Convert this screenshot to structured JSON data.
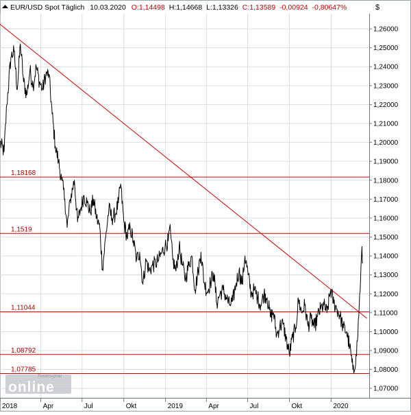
{
  "header": {
    "instrument": "EUR/USD Spot Täglich",
    "date": "10.03.2020",
    "open": "O:1,14498",
    "high": "H:1,14668",
    "low": "L:1,13326",
    "close": "C:1,13589",
    "change": "-0,00924",
    "change_pct": "-0,80647%",
    "currency_symbol": "$"
  },
  "logo": {
    "small_text": "Tradesignal",
    "brand": "online"
  },
  "colors": {
    "background": "#ffffff",
    "grid": "#d7dde2",
    "price_line": "#000000",
    "level_line": "#cc0000",
    "level_label": "#aa0000",
    "trend_line": "#cc0000",
    "axis_text": "#000000"
  },
  "chart_data": {
    "type": "line",
    "x_tick_labels": [
      "2018",
      "Apr",
      "Jul",
      "Okt",
      "2019",
      "Apr",
      "Jul",
      "Okt",
      "2020"
    ],
    "y_tick_labels": [
      "1,26000",
      "1,25000",
      "1,24000",
      "1,23000",
      "1,22000",
      "1,21000",
      "1,20000",
      "1,19000",
      "1,18000",
      "1,17000",
      "1,16000",
      "1,15000",
      "1,14000",
      "1,13000",
      "1,12000",
      "1,11000",
      "1,10000",
      "1,09000",
      "1,08000",
      "1,07000"
    ],
    "ylim": [
      1.065,
      1.268
    ],
    "xlim": [
      "2018-01-01",
      "2020-03-25"
    ],
    "grid": true,
    "horizontal_levels": [
      {
        "label": "1,18168",
        "value": 1.18168
      },
      {
        "label": "1,1519",
        "value": 1.1519
      },
      {
        "label": "1,11044",
        "value": 1.11044
      },
      {
        "label": "1,08792",
        "value": 1.08792
      },
      {
        "label": "1,07785",
        "value": 1.07785
      }
    ],
    "trendline": [
      {
        "x": "2017-12-29",
        "y": 1.263
      },
      {
        "x": "2020-03-20",
        "y": 1.107
      }
    ],
    "series": [
      {
        "values": [
          {
            "x": "2018-01-01",
            "y": 1.2
          },
          {
            "x": "2018-01-10",
            "y": 1.195
          },
          {
            "x": "2018-01-16",
            "y": 1.22
          },
          {
            "x": "2018-01-25",
            "y": 1.245
          },
          {
            "x": "2018-02-01",
            "y": 1.248
          },
          {
            "x": "2018-02-08",
            "y": 1.228
          },
          {
            "x": "2018-02-15",
            "y": 1.252
          },
          {
            "x": "2018-02-22",
            "y": 1.232
          },
          {
            "x": "2018-03-01",
            "y": 1.225
          },
          {
            "x": "2018-03-08",
            "y": 1.238
          },
          {
            "x": "2018-03-15",
            "y": 1.23
          },
          {
            "x": "2018-03-22",
            "y": 1.24
          },
          {
            "x": "2018-03-29",
            "y": 1.232
          },
          {
            "x": "2018-04-05",
            "y": 1.228
          },
          {
            "x": "2018-04-12",
            "y": 1.236
          },
          {
            "x": "2018-04-19",
            "y": 1.236
          },
          {
            "x": "2018-04-26",
            "y": 1.215
          },
          {
            "x": "2018-05-03",
            "y": 1.198
          },
          {
            "x": "2018-05-10",
            "y": 1.19
          },
          {
            "x": "2018-05-17",
            "y": 1.18
          },
          {
            "x": "2018-05-24",
            "y": 1.17
          },
          {
            "x": "2018-05-29",
            "y": 1.155
          },
          {
            "x": "2018-06-05",
            "y": 1.17
          },
          {
            "x": "2018-06-14",
            "y": 1.18
          },
          {
            "x": "2018-06-21",
            "y": 1.158
          },
          {
            "x": "2018-06-28",
            "y": 1.165
          },
          {
            "x": "2018-07-05",
            "y": 1.172
          },
          {
            "x": "2018-07-12",
            "y": 1.168
          },
          {
            "x": "2018-07-19",
            "y": 1.163
          },
          {
            "x": "2018-07-26",
            "y": 1.17
          },
          {
            "x": "2018-08-02",
            "y": 1.16
          },
          {
            "x": "2018-08-09",
            "y": 1.155
          },
          {
            "x": "2018-08-15",
            "y": 1.133
          },
          {
            "x": "2018-08-22",
            "y": 1.15
          },
          {
            "x": "2018-08-29",
            "y": 1.165
          },
          {
            "x": "2018-09-05",
            "y": 1.16
          },
          {
            "x": "2018-09-12",
            "y": 1.162
          },
          {
            "x": "2018-09-19",
            "y": 1.168
          },
          {
            "x": "2018-09-24",
            "y": 1.178
          },
          {
            "x": "2018-10-01",
            "y": 1.158
          },
          {
            "x": "2018-10-08",
            "y": 1.15
          },
          {
            "x": "2018-10-15",
            "y": 1.155
          },
          {
            "x": "2018-10-22",
            "y": 1.148
          },
          {
            "x": "2018-10-29",
            "y": 1.138
          },
          {
            "x": "2018-11-05",
            "y": 1.142
          },
          {
            "x": "2018-11-12",
            "y": 1.125
          },
          {
            "x": "2018-11-19",
            "y": 1.138
          },
          {
            "x": "2018-11-26",
            "y": 1.132
          },
          {
            "x": "2018-12-03",
            "y": 1.135
          },
          {
            "x": "2018-12-10",
            "y": 1.136
          },
          {
            "x": "2018-12-17",
            "y": 1.138
          },
          {
            "x": "2018-12-24",
            "y": 1.142
          },
          {
            "x": "2018-12-31",
            "y": 1.145
          },
          {
            "x": "2019-01-07",
            "y": 1.148
          },
          {
            "x": "2019-01-10",
            "y": 1.155
          },
          {
            "x": "2019-01-17",
            "y": 1.138
          },
          {
            "x": "2019-01-24",
            "y": 1.132
          },
          {
            "x": "2019-01-31",
            "y": 1.145
          },
          {
            "x": "2019-02-07",
            "y": 1.135
          },
          {
            "x": "2019-02-14",
            "y": 1.128
          },
          {
            "x": "2019-02-21",
            "y": 1.135
          },
          {
            "x": "2019-02-28",
            "y": 1.14
          },
          {
            "x": "2019-03-07",
            "y": 1.122
          },
          {
            "x": "2019-03-14",
            "y": 1.132
          },
          {
            "x": "2019-03-20",
            "y": 1.142
          },
          {
            "x": "2019-03-27",
            "y": 1.126
          },
          {
            "x": "2019-04-03",
            "y": 1.121
          },
          {
            "x": "2019-04-10",
            "y": 1.126
          },
          {
            "x": "2019-04-17",
            "y": 1.131
          },
          {
            "x": "2019-04-24",
            "y": 1.115
          },
          {
            "x": "2019-05-01",
            "y": 1.12
          },
          {
            "x": "2019-05-08",
            "y": 1.122
          },
          {
            "x": "2019-05-15",
            "y": 1.118
          },
          {
            "x": "2019-05-22",
            "y": 1.114
          },
          {
            "x": "2019-05-29",
            "y": 1.116
          },
          {
            "x": "2019-06-05",
            "y": 1.125
          },
          {
            "x": "2019-06-12",
            "y": 1.132
          },
          {
            "x": "2019-06-19",
            "y": 1.125
          },
          {
            "x": "2019-06-25",
            "y": 1.14
          },
          {
            "x": "2019-07-02",
            "y": 1.13
          },
          {
            "x": "2019-07-09",
            "y": 1.12
          },
          {
            "x": "2019-07-16",
            "y": 1.122
          },
          {
            "x": "2019-07-23",
            "y": 1.118
          },
          {
            "x": "2019-07-30",
            "y": 1.114
          },
          {
            "x": "2019-08-06",
            "y": 1.12
          },
          {
            "x": "2019-08-13",
            "y": 1.118
          },
          {
            "x": "2019-08-20",
            "y": 1.108
          },
          {
            "x": "2019-08-27",
            "y": 1.11
          },
          {
            "x": "2019-09-03",
            "y": 1.098
          },
          {
            "x": "2019-09-10",
            "y": 1.103
          },
          {
            "x": "2019-09-17",
            "y": 1.104
          },
          {
            "x": "2019-09-24",
            "y": 1.096
          },
          {
            "x": "2019-10-01",
            "y": 1.088
          },
          {
            "x": "2019-10-08",
            "y": 1.097
          },
          {
            "x": "2019-10-15",
            "y": 1.102
          },
          {
            "x": "2019-10-21",
            "y": 1.117
          },
          {
            "x": "2019-10-28",
            "y": 1.11
          },
          {
            "x": "2019-11-04",
            "y": 1.114
          },
          {
            "x": "2019-11-11",
            "y": 1.103
          },
          {
            "x": "2019-11-18",
            "y": 1.107
          },
          {
            "x": "2019-11-25",
            "y": 1.102
          },
          {
            "x": "2019-12-02",
            "y": 1.108
          },
          {
            "x": "2019-12-09",
            "y": 1.112
          },
          {
            "x": "2019-12-16",
            "y": 1.114
          },
          {
            "x": "2019-12-23",
            "y": 1.11
          },
          {
            "x": "2019-12-31",
            "y": 1.122
          },
          {
            "x": "2020-01-07",
            "y": 1.115
          },
          {
            "x": "2020-01-14",
            "y": 1.112
          },
          {
            "x": "2020-01-21",
            "y": 1.108
          },
          {
            "x": "2020-01-28",
            "y": 1.102
          },
          {
            "x": "2020-02-04",
            "y": 1.1
          },
          {
            "x": "2020-02-11",
            "y": 1.092
          },
          {
            "x": "2020-02-18",
            "y": 1.08
          },
          {
            "x": "2020-02-20",
            "y": 1.078
          },
          {
            "x": "2020-02-25",
            "y": 1.088
          },
          {
            "x": "2020-02-28",
            "y": 1.095
          },
          {
            "x": "2020-03-03",
            "y": 1.114
          },
          {
            "x": "2020-03-06",
            "y": 1.128
          },
          {
            "x": "2020-03-09",
            "y": 1.145
          },
          {
            "x": "2020-03-10",
            "y": 1.136
          }
        ]
      }
    ]
  }
}
